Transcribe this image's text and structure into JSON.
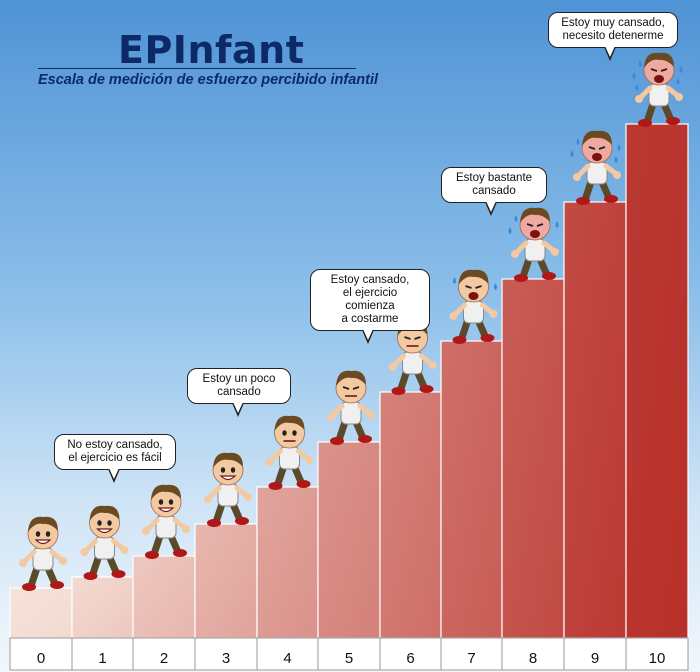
{
  "header": {
    "title": "EPInfant",
    "subtitle": "Escala de medición de esfuerzo percibido infantil"
  },
  "scale": {
    "levels": [
      "0",
      "1",
      "2",
      "3",
      "4",
      "5",
      "6",
      "7",
      "8",
      "9",
      "10"
    ]
  },
  "bubbles": [
    {
      "level": 1,
      "text": "No estoy cansado,\nel ejercicio es fácil"
    },
    {
      "level": 3,
      "text": "Estoy un poco\ncansado"
    },
    {
      "level": 5,
      "text": "Estoy cansado,\nel ejercicio comienza\na costarme"
    },
    {
      "level": 7,
      "text": "Estoy bastante\ncansado"
    },
    {
      "level": 9,
      "text": "Estoy muy cansado,\nnecesito detenerme"
    }
  ],
  "colors": {
    "step_light": "#f6e3da",
    "step_dark": "#b8302a",
    "title": "#0d2a66"
  },
  "characters": [
    {
      "level": 0,
      "expression": "happy-thumbs-up"
    },
    {
      "level": 1,
      "expression": "grinning"
    },
    {
      "level": 2,
      "expression": "grinning"
    },
    {
      "level": 3,
      "expression": "smiling"
    },
    {
      "level": 4,
      "expression": "smiling"
    },
    {
      "level": 5,
      "expression": "neutral"
    },
    {
      "level": 6,
      "expression": "effort"
    },
    {
      "level": 7,
      "expression": "worried-sweating"
    },
    {
      "level": 8,
      "expression": "exhausted-sweating"
    },
    {
      "level": 9,
      "expression": "exhausted-sweating"
    },
    {
      "level": 10,
      "expression": "crying-exhausted"
    }
  ]
}
